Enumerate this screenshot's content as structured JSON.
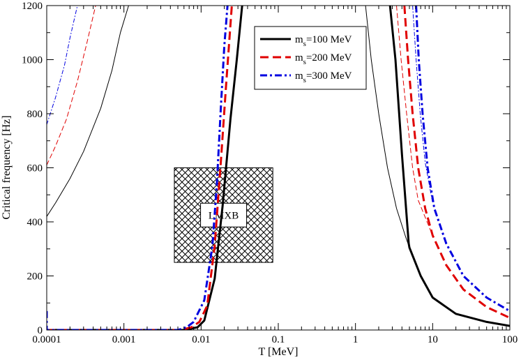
{
  "chart_data": {
    "type": "line",
    "title": "",
    "xlabel": "T [MeV]",
    "ylabel": "Critical frequency [Hz]",
    "xscale": "log",
    "xlim": [
      0.0001,
      100
    ],
    "ylim": [
      0,
      1200
    ],
    "x_ticks": [
      {
        "value": 0.0001,
        "label": "0.0001"
      },
      {
        "value": 0.001,
        "label": "0.001"
      },
      {
        "value": 0.01,
        "label": "0.01"
      },
      {
        "value": 0.1,
        "label": "0.1"
      },
      {
        "value": 1,
        "label": "1"
      },
      {
        "value": 10,
        "label": "10"
      },
      {
        "value": 100,
        "label": "100"
      }
    ],
    "y_ticks": [
      {
        "value": 0,
        "label": "0"
      },
      {
        "value": 200,
        "label": "200"
      },
      {
        "value": 400,
        "label": "400"
      },
      {
        "value": 600,
        "label": "600"
      },
      {
        "value": 800,
        "label": "800"
      },
      {
        "value": 1000,
        "label": "1000"
      },
      {
        "value": 1200,
        "label": "1200"
      }
    ],
    "legend": {
      "position": "top-right",
      "entries": [
        {
          "name": "m",
          "subscript": "s",
          "suffix": "=100 MeV",
          "color": "#000000",
          "dash": "solid"
        },
        {
          "name": "m",
          "subscript": "s",
          "suffix": "=200 MeV",
          "color": "#e00000",
          "dash": "dash"
        },
        {
          "name": "m",
          "subscript": "s",
          "suffix": "=300 MeV",
          "color": "#0000e0",
          "dash": "dashdot"
        }
      ]
    },
    "annotation": {
      "label": "LMXB",
      "x_range": [
        0.0045,
        0.085
      ],
      "y_range": [
        250,
        600
      ]
    },
    "series": [
      {
        "name": "ms=100 MeV thick (low T)",
        "color": "#000000",
        "width": 3,
        "dash": "solid",
        "points": [
          [
            0.0001,
            0
          ],
          [
            0.001,
            0
          ],
          [
            0.006,
            0
          ],
          [
            0.009,
            10
          ],
          [
            0.011,
            35
          ],
          [
            0.015,
            190
          ],
          [
            0.019,
            460
          ],
          [
            0.024,
            780
          ],
          [
            0.029,
            1000
          ],
          [
            0.034,
            1200
          ]
        ]
      },
      {
        "name": "ms=100 MeV thick (high T)",
        "color": "#000000",
        "width": 3,
        "dash": "solid",
        "points": [
          [
            2.8,
            1200
          ],
          [
            3.3,
            1000
          ],
          [
            4.0,
            650
          ],
          [
            4.9,
            320
          ],
          [
            5.0,
            305
          ],
          [
            7,
            200
          ],
          [
            10,
            120
          ],
          [
            20,
            60
          ],
          [
            50,
            30
          ],
          [
            100,
            15
          ]
        ]
      },
      {
        "name": "ms=100 MeV thin (low T)",
        "color": "#000000",
        "width": 1,
        "dash": "solid",
        "points": [
          [
            0.0001,
            420
          ],
          [
            0.00013,
            470
          ],
          [
            0.0002,
            560
          ],
          [
            0.0003,
            660
          ],
          [
            0.0005,
            820
          ],
          [
            0.0007,
            960
          ],
          [
            0.0009,
            1100
          ],
          [
            0.00115,
            1200
          ]
        ]
      },
      {
        "name": "ms=100 MeV thin (high T)",
        "color": "#000000",
        "width": 1,
        "dash": "solid",
        "points": [
          [
            1.35,
            1200
          ],
          [
            1.6,
            1000
          ],
          [
            2,
            800
          ],
          [
            2.6,
            600
          ],
          [
            3.4,
            450
          ],
          [
            4.4,
            350
          ],
          [
            5.0,
            305
          ]
        ]
      },
      {
        "name": "ms=200 MeV thick (low T)",
        "color": "#e00000",
        "width": 3,
        "dash": "dash",
        "points": [
          [
            0.0001,
            0
          ],
          [
            0.001,
            0
          ],
          [
            0.0055,
            0
          ],
          [
            0.0075,
            10
          ],
          [
            0.0095,
            30
          ],
          [
            0.012,
            90
          ],
          [
            0.015,
            310
          ],
          [
            0.018,
            620
          ],
          [
            0.021,
            900
          ],
          [
            0.025,
            1200
          ]
        ]
      },
      {
        "name": "ms=200 MeV thick (high T)",
        "color": "#e00000",
        "width": 3,
        "dash": "dash",
        "points": [
          [
            4.3,
            1200
          ],
          [
            4.8,
            1000
          ],
          [
            5.5,
            800
          ],
          [
            6.5,
            600
          ],
          [
            8,
            450
          ],
          [
            10,
            350
          ],
          [
            15,
            240
          ],
          [
            25,
            150
          ],
          [
            50,
            85
          ],
          [
            100,
            45
          ]
        ]
      },
      {
        "name": "ms=200 MeV thin (low T)",
        "color": "#e00000",
        "width": 1,
        "dash": "dash",
        "points": [
          [
            0.0001,
            610
          ],
          [
            0.00013,
            680
          ],
          [
            0.00018,
            780
          ],
          [
            0.00025,
            920
          ],
          [
            0.00033,
            1060
          ],
          [
            0.00043,
            1200
          ]
        ]
      },
      {
        "name": "ms=200 MeV thin (high T)",
        "color": "#e00000",
        "width": 1,
        "dash": "dash",
        "points": [
          [
            3.4,
            1200
          ],
          [
            3.9,
            1000
          ],
          [
            4.6,
            800
          ],
          [
            5.5,
            600
          ],
          [
            6.5,
            480
          ],
          [
            10,
            350
          ]
        ]
      },
      {
        "name": "ms=300 MeV thick (low T)",
        "color": "#0000e0",
        "width": 3,
        "dash": "dashdot",
        "points": [
          [
            0.0001,
            70
          ],
          [
            0.0001,
            0
          ],
          [
            0.001,
            0
          ],
          [
            0.005,
            0
          ],
          [
            0.0065,
            10
          ],
          [
            0.008,
            30
          ],
          [
            0.011,
            110
          ],
          [
            0.014,
            310
          ],
          [
            0.016,
            540
          ],
          [
            0.018,
            820
          ],
          [
            0.02,
            1050
          ],
          [
            0.022,
            1200
          ]
        ]
      },
      {
        "name": "ms=300 MeV thick (high T)",
        "color": "#0000e0",
        "width": 3,
        "dash": "dashdot",
        "points": [
          [
            6.1,
            1200
          ],
          [
            6.6,
            1000
          ],
          [
            7.4,
            800
          ],
          [
            8.6,
            600
          ],
          [
            10.5,
            450
          ],
          [
            15,
            320
          ],
          [
            25,
            200
          ],
          [
            50,
            120
          ],
          [
            100,
            70
          ]
        ]
      },
      {
        "name": "ms=300 MeV thin (low T)",
        "color": "#0000e0",
        "width": 1,
        "dash": "dashdot",
        "points": [
          [
            0.0001,
            760
          ],
          [
            0.00013,
            860
          ],
          [
            0.00017,
            980
          ],
          [
            0.0002,
            1080
          ],
          [
            0.00025,
            1200
          ]
        ]
      },
      {
        "name": "ms=300 MeV thin (high T)",
        "color": "#0000e0",
        "width": 1,
        "dash": "dashdot",
        "points": [
          [
            5.5,
            1200
          ],
          [
            6.1,
            1000
          ],
          [
            6.9,
            800
          ],
          [
            8,
            620
          ],
          [
            10,
            470
          ]
        ]
      }
    ]
  }
}
